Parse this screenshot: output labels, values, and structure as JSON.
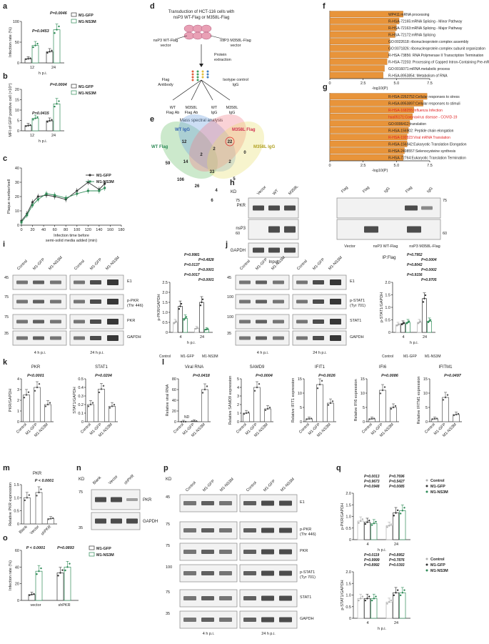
{
  "figure": {
    "panels": [
      "a",
      "b",
      "c",
      "d",
      "e",
      "f",
      "g",
      "h",
      "i",
      "j",
      "k",
      "l",
      "m",
      "n",
      "o",
      "p",
      "q"
    ],
    "legend_labels": {
      "gfp": "M1-GFP",
      "ns3m": "M1-NS3M",
      "control": "Control"
    },
    "colors": {
      "gfp": "#333333",
      "ns3m": "#2e8b57",
      "control": "#b0b0b0",
      "bar_orange": "#e8943a",
      "red_text": "#e02020",
      "venn_wt_igg": "#6ea0e0",
      "venn_m358l_flag": "#f07f8a",
      "venn_wt_flag": "#6cbf6c",
      "venn_m358l_igg": "#e8e070"
    }
  },
  "a": {
    "ylabel": "Infection rate (%)",
    "xlabel": "h p.i.",
    "yticks": [
      "0",
      "50",
      "100"
    ],
    "xticks": [
      "12",
      "24"
    ],
    "pvals": [
      "P=0.0453",
      "P=0.0046"
    ]
  },
  "b": {
    "ylabel": "MFI of GFP positive cell (×10⁴)",
    "xlabel": "h p.i.",
    "yticks": [
      "0",
      "5",
      "10",
      "15",
      "20"
    ],
    "xticks": [
      "12",
      "24"
    ],
    "pvals": [
      "P=0.0415",
      "P=0.0004"
    ]
  },
  "c": {
    "ylabel": "Plaque number/well",
    "xlabel1": "Infection time before",
    "xlabel2": "semi-solid media added (min)",
    "yticks": [
      "0",
      "10",
      "20",
      "30",
      "40"
    ],
    "xticks": [
      "0",
      "20",
      "40",
      "60",
      "80",
      "100",
      "120",
      "140",
      "160",
      "180"
    ]
  },
  "chart_data": [
    {
      "panel": "a",
      "type": "bar",
      "categories": [
        "12",
        "24"
      ],
      "series": [
        {
          "name": "M1-GFP",
          "values": [
            10,
            27
          ]
        },
        {
          "name": "M1-NS3M",
          "values": [
            42,
            80
          ]
        }
      ],
      "ylabel": "Infection rate (%)",
      "xlabel": "h p.i.",
      "ylim": [
        0,
        100
      ]
    },
    {
      "panel": "b",
      "type": "bar",
      "categories": [
        "12",
        "24"
      ],
      "series": [
        {
          "name": "M1-GFP",
          "values": [
            2.5,
            4.8
          ]
        },
        {
          "name": "M1-NS3M",
          "values": [
            6,
            13
          ]
        }
      ],
      "ylabel": "MFI of GFP positive cell (×10⁴)",
      "xlabel": "h p.i.",
      "ylim": [
        0,
        20
      ]
    },
    {
      "panel": "c",
      "type": "line",
      "series": [
        {
          "name": "M1-GFP",
          "x": [
            0,
            10,
            20,
            30,
            45,
            60,
            80,
            100,
            120,
            140,
            150
          ],
          "values": [
            3,
            8,
            16,
            20,
            21,
            20,
            18,
            24,
            30,
            25,
            29
          ]
        },
        {
          "name": "M1-NS3M",
          "x": [
            0,
            10,
            20,
            30,
            45,
            60,
            80,
            100,
            120,
            140,
            150
          ],
          "values": [
            2,
            7,
            14,
            18,
            22,
            21,
            19,
            22,
            24,
            24,
            26
          ]
        }
      ],
      "ylabel": "Plaque number/well",
      "xlabel": "Infection time before semi-solid media added (min)",
      "ylim": [
        0,
        40
      ],
      "xlim": [
        0,
        180
      ]
    },
    {
      "panel": "f",
      "type": "bar",
      "orientation": "horizontal",
      "categories": [
        "WP411:mRNA processing",
        "R-HSA-72165:mRNA Splicing - Minor Pathway",
        "R-HSA-72163:mRNA Splicing - Major Pathway",
        "R-HSA-72172:mRNA Splicing",
        "GO:0022618: ribonucleoprotein complex assembly",
        "GO:0071826: ribonucleoprotein complex subunit organization",
        "R-HSA-73856: RNA Polymerase II Transcription Termination",
        "R-HSA-72203: Processing of Capped Intron-Containing Pre-mRNA",
        "GO:0016071:mRNA metabolic process",
        "R-HSA-8953854: Metabolism of RNA"
      ],
      "values": [
        5.5,
        5.2,
        5.0,
        4.9,
        4.5,
        4.5,
        4.4,
        4.3,
        4.1,
        4.0
      ],
      "xlabel": "-log10(P)",
      "xlim": [
        0,
        7.5
      ]
    },
    {
      "panel": "g",
      "type": "bar",
      "orientation": "horizontal",
      "categories": [
        "R-HSA-2262752:Cellular responses to stress",
        "R-HSA-8953897:Cellular responses to stimuli",
        "R-HSA-168255:Influenza Infection",
        "hsa05171:Coronavirus disease - COVID-19",
        "GO:0006412:translation",
        "R-HSA-156902: Peptide chain elongation",
        "R-HSA-192823:Viral mRNA Translation",
        "R-HSA-156842:Eukaryotic Translation Elongation",
        "R-HSA-2408557:Selenocysteine synthesis",
        "R-HSA-72764:Eukaryotic Translation Termination"
      ],
      "values": [
        7.3,
        7.0,
        6.3,
        6.2,
        6.0,
        5.9,
        5.8,
        5.8,
        5.6,
        5.5
      ],
      "xlabel": "-log10(P)",
      "xlim": [
        0,
        7.5
      ]
    },
    {
      "panel": "i",
      "type": "bar",
      "categories": [
        "4",
        "24"
      ],
      "series": [
        {
          "name": "Control",
          "values": [
            0.5,
            0.2
          ]
        },
        {
          "name": "M1-GFP",
          "values": [
            1.3,
            1.5
          ]
        },
        {
          "name": "M1-NS3M",
          "values": [
            0.7,
            0.15
          ]
        }
      ],
      "ylabel": "p-PKR/GAPDH",
      "xlabel": "h p.i.",
      "ylim": [
        0,
        2.5
      ]
    },
    {
      "panel": "j",
      "type": "bar",
      "categories": [
        "4",
        "24"
      ],
      "series": [
        {
          "name": "Control",
          "values": [
            0.3,
            0.4
          ]
        },
        {
          "name": "M1-GFP",
          "values": [
            0.35,
            1.35
          ]
        },
        {
          "name": "M1-NS3M",
          "values": [
            0.4,
            0.45
          ]
        }
      ],
      "ylabel": "p-STAT1/GAPDH",
      "xlabel": "h p.i.",
      "ylim": [
        0,
        2.0
      ]
    },
    {
      "panel": "k-PKR",
      "type": "bar",
      "categories": [
        "Control",
        "M1-GFP",
        "M1-NS3M"
      ],
      "values": [
        2.5,
        3.2,
        1.6
      ],
      "ylabel": "PKR/GAPDH",
      "ylim": [
        0,
        4
      ]
    },
    {
      "panel": "k-STAT1",
      "type": "bar",
      "categories": [
        "Control",
        "M1-GFP",
        "M1-NS3M"
      ],
      "values": [
        0.2,
        0.38,
        0.18
      ],
      "ylabel": "STAT1/GAPDH",
      "ylim": [
        0,
        0.5
      ]
    },
    {
      "panel": "l-Viral RNA",
      "type": "bar",
      "categories": [
        "Control",
        "M1-GFP",
        "M1-NS3M"
      ],
      "values": [
        0,
        1,
        60
      ],
      "ylabel": "Relative viral RNA",
      "ylim": [
        0,
        80
      ]
    },
    {
      "panel": "l-SAMD9",
      "type": "bar",
      "categories": [
        "Control",
        "M1-GFP",
        "M1-NS3M"
      ],
      "values": [
        1,
        4,
        1.5
      ],
      "ylabel": "Relative SAMD9 expression",
      "ylim": [
        0,
        5
      ]
    },
    {
      "panel": "l-IFIT1",
      "type": "bar",
      "categories": [
        "Control",
        "M1-GFP",
        "M1-NS3M"
      ],
      "values": [
        1,
        13,
        6.5
      ],
      "ylabel": "Relative IFIT1 expression",
      "ylim": [
        0,
        15
      ]
    },
    {
      "panel": "l-IFI6",
      "type": "bar",
      "categories": [
        "Control",
        "M1-GFP",
        "M1-NS3M"
      ],
      "values": [
        1,
        11,
        5
      ],
      "ylabel": "Relative IFI6 expression",
      "ylim": [
        0,
        15
      ]
    },
    {
      "panel": "l-IFITM1",
      "type": "bar",
      "categories": [
        "Control",
        "M1-GFP",
        "M1-NS3M"
      ],
      "values": [
        1,
        8.5,
        2.5
      ],
      "ylabel": "Relative IFITM1 expression",
      "ylim": [
        0,
        15
      ]
    },
    {
      "panel": "m",
      "type": "bar",
      "categories": [
        "Blank",
        "Vector",
        "shPKR"
      ],
      "values": [
        1,
        1.2,
        0.2
      ],
      "ylabel": "Relative PKR expression",
      "ylim": [
        0,
        1.5
      ]
    },
    {
      "panel": "o",
      "type": "bar",
      "categories": [
        "vector",
        "shPKR"
      ],
      "series": [
        {
          "name": "M1-GFP",
          "values": [
            7,
            33
          ]
        },
        {
          "name": "M1-NS3M",
          "values": [
            35,
            40
          ]
        }
      ],
      "ylabel": "Infection rate (%)",
      "ylim": [
        0,
        60
      ]
    },
    {
      "panel": "q-top",
      "type": "bar",
      "categories": [
        "4",
        "24"
      ],
      "series": [
        {
          "name": "Control",
          "values": [
            0.8,
            0.6
          ]
        },
        {
          "name": "M1-GFP",
          "values": [
            0.75,
            1.15
          ]
        },
        {
          "name": "M1-NS3M",
          "values": [
            0.7,
            1.25
          ]
        }
      ],
      "ylabel": "p-PKR/GAPDH",
      "xlabel": "h p.i.",
      "ylim": [
        0,
        2.0
      ]
    },
    {
      "panel": "q-bottom",
      "type": "bar",
      "categories": [
        "4",
        "24"
      ],
      "series": [
        {
          "name": "Control",
          "values": [
            0.85,
            0.7
          ]
        },
        {
          "name": "M1-GFP",
          "values": [
            0.85,
            1.1
          ]
        },
        {
          "name": "M1-NS3M",
          "values": [
            0.85,
            1.1
          ]
        }
      ],
      "ylabel": "p-STAT1/GAPDH",
      "xlabel": "h p.i.",
      "ylim": [
        0,
        2.0
      ]
    }
  ],
  "d": {
    "title1": "Transduction of HCT-116 cells with",
    "title2": "nsP3 WT-Flag or M358L-Flag",
    "v1a": "nsP3 WT-Flag",
    "v1b": "vector",
    "v2a": "nsP3 M358L-Flag",
    "v2b": "vector",
    "protein1": "Protein",
    "protein2": "extraction",
    "flag1": "Flag",
    "flag2": "Antibody",
    "iso1": "Isotype control",
    "iso2": "IgG",
    "wt1": "WT",
    "wt2": "Flag Ab",
    "m1": "M358L",
    "m2": "Flag Ab",
    "wi1": "WT",
    "wi2": "IgG",
    "mi1": "M358L",
    "mi2": "IgG",
    "mass": "Mass spectral analysis"
  },
  "e": {
    "labels": {
      "wt_igg": "WT IgG",
      "m358l_flag": "M358L Flag",
      "wt_flag": "WT Flag",
      "m358l_igg": "M358L IgG"
    },
    "numbers": [
      "12",
      "22",
      "0",
      "59",
      "14",
      "2",
      "2",
      "33",
      "106",
      "26",
      "4",
      "5",
      "6",
      "2"
    ]
  },
  "f_text": {
    "xlabel": "-log10(P)",
    "xticks": [
      "0",
      "2.5",
      "5.0",
      "7.5"
    ]
  },
  "g_text": {
    "xlabel": "-log10(P)",
    "xticks": [
      "0",
      "2.5",
      "5.0",
      "7.5"
    ],
    "red_indices": [
      2,
      3,
      6
    ]
  },
  "h": {
    "kd": "KD",
    "lanes_input": [
      "Vector",
      "WT",
      "M358L"
    ],
    "lanes_ip": [
      "Flag",
      "Flag",
      "IgG",
      "Flag",
      "IgG"
    ],
    "rows": [
      "PKR",
      "nsP3",
      "GAPDH"
    ],
    "mw_left": [
      "75",
      "60"
    ],
    "mw_right": [
      "75",
      "60"
    ],
    "bottom_input": "Input",
    "groups": [
      "Vector",
      "nsP3 WT-Flag",
      "nsP3 M358L-Flag"
    ],
    "bottom_ip": "IP:Flag"
  },
  "i": {
    "lanes": [
      "Control",
      "M1-GFP",
      "M1-NS3M"
    ],
    "rows": [
      "E1",
      "p-PKR\n(Thr 446)",
      "PKR",
      "GAPDH"
    ],
    "mw": [
      "45",
      "75",
      "75",
      "35"
    ],
    "times": [
      "4 h p.i.",
      "24 h p.i."
    ],
    "pvals": [
      "P=0.9981",
      "P=0.4828",
      "P=0.0137",
      "P<0.0001",
      "P=0.0017",
      "P<0.0001"
    ]
  },
  "j": {
    "rows": [
      "E1",
      "p-STAT1\n(Tyr 701)",
      "STAT1",
      "GAPDH"
    ],
    "mw": [
      "45",
      "100",
      "100",
      "35"
    ],
    "pvals": [
      "P=0.7952",
      "P=0.0004",
      "P=0.8042",
      "P=0.0002",
      "P=0.9156",
      "P=0.9705"
    ]
  },
  "k": {
    "titles": [
      "PKR",
      "STAT1"
    ],
    "pvals": [
      "P<0.0001",
      "P=0.0204"
    ]
  },
  "l": {
    "titles": [
      "Viral RNA",
      "SAMD9",
      "IFIT1",
      "IFI6",
      "IFITM1"
    ],
    "pvals": [
      "P=0.0418",
      "P=0.0004",
      "P=0.0026",
      "P=0.0086",
      "P=0.0497"
    ],
    "nd": "ND"
  },
  "m": {
    "title": "PKR",
    "pval": "P < 0.0001"
  },
  "n": {
    "kd": "KD",
    "lanes": [
      "Blank",
      "Vector",
      "shPKR"
    ],
    "rows": [
      "PKR",
      "GAPDH"
    ],
    "mw": [
      "75",
      "35"
    ]
  },
  "o": {
    "pvals": [
      "P < 0.0001",
      "P=0.0893"
    ]
  },
  "p": {
    "kd": "KD",
    "rows": [
      "E1",
      "p-PKR\n(Thr 446)",
      "PKR",
      "p-STAT1\n(Tyr 701)",
      "STAT1",
      "GAPDH"
    ],
    "mw": [
      "45",
      "75",
      "75",
      "100",
      "75",
      "35"
    ]
  },
  "q": {
    "top_pvals": [
      "P=0.0013",
      "P=0.7696",
      "P=0.9673",
      "P=0.5427",
      "P=0.0948",
      "P=0.0085"
    ],
    "bottom_pvals": [
      "P=0.0119",
      "P=0.8952",
      "P=0.9999",
      "P=0.7876",
      "P=0.8992",
      "P=0.0393"
    ]
  }
}
